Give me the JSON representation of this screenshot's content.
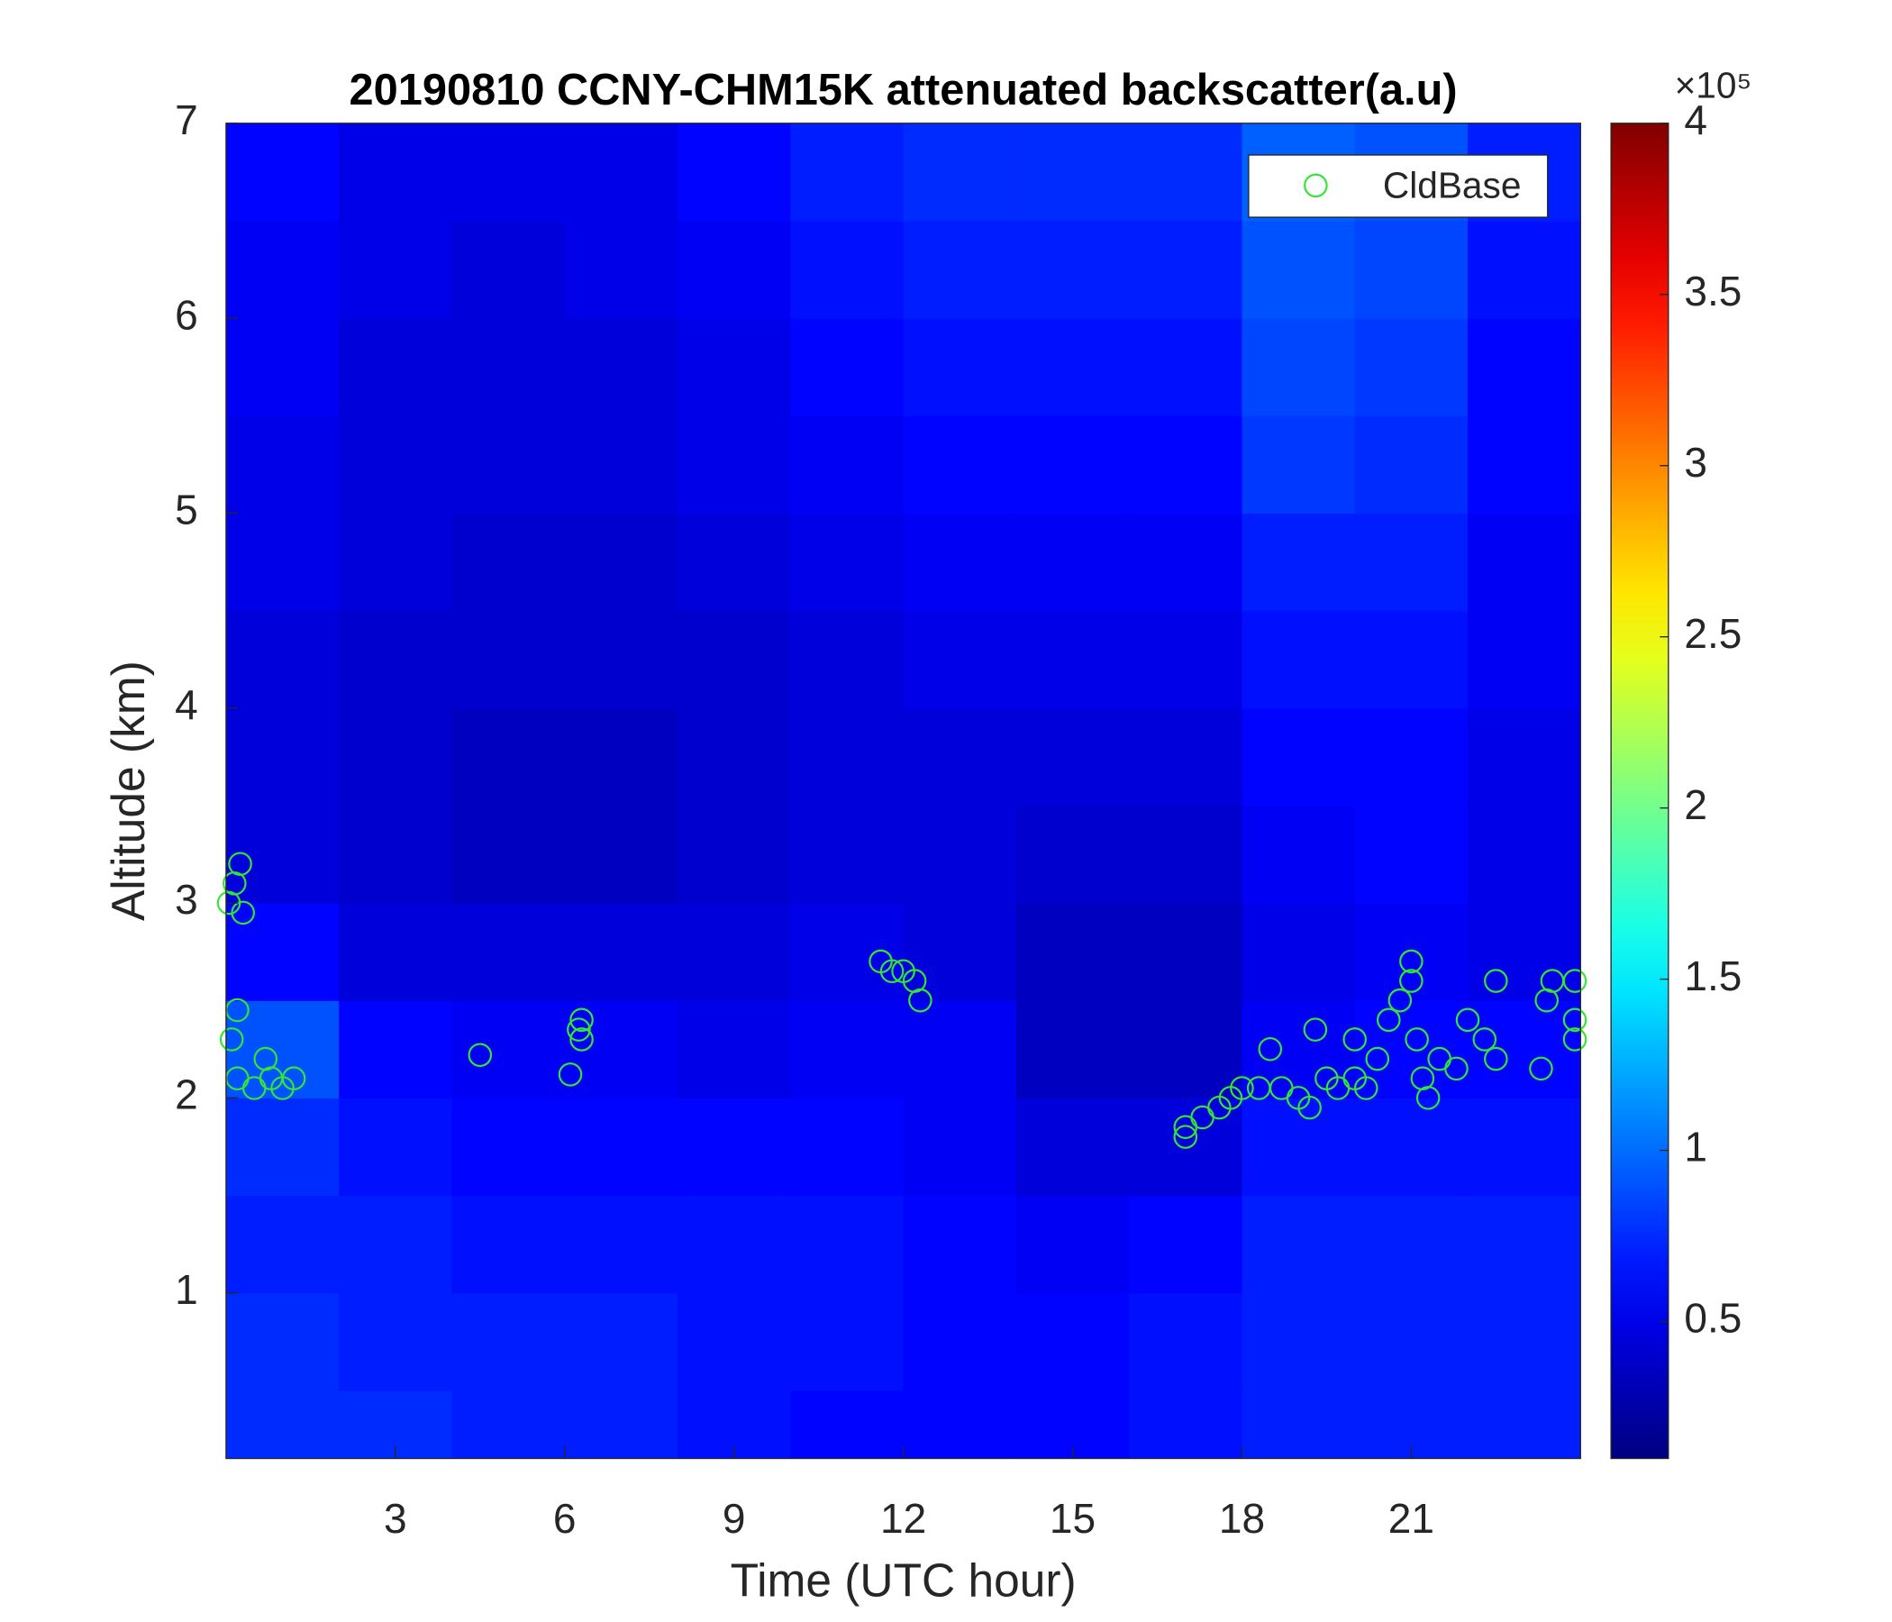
{
  "chart_data": {
    "type": "heatmap",
    "title": "20190810 CCNY-CHM15K attenuated backscatter(a.u)",
    "xlabel": "Time (UTC hour)",
    "ylabel": "Altitude (km)",
    "xlim": [
      0,
      24
    ],
    "ylim": [
      0.15,
      7
    ],
    "xticks": [
      3,
      6,
      9,
      12,
      15,
      18,
      21
    ],
    "yticks": [
      1,
      2,
      3,
      4,
      5,
      6,
      7
    ],
    "colormap": "jet",
    "zlim": [
      0.1,
      4
    ],
    "zticks": [
      0.5,
      1,
      1.5,
      2,
      2.5,
      3,
      3.5,
      4
    ],
    "colorbar_multiplier": "×10⁵",
    "heatmap": {
      "x": [
        1,
        3,
        5,
        7,
        9,
        11,
        13,
        15,
        17,
        19,
        21,
        23
      ],
      "y": [
        0.25,
        0.75,
        1.25,
        1.75,
        2.25,
        2.75,
        3.25,
        3.75,
        4.25,
        4.75,
        5.25,
        5.75,
        6.25,
        6.75
      ],
      "z": [
        [
          0.75,
          0.75,
          0.7,
          0.7,
          0.65,
          0.6,
          0.6,
          0.6,
          0.65,
          0.7,
          0.7,
          0.7
        ],
        [
          0.75,
          0.7,
          0.7,
          0.7,
          0.65,
          0.65,
          0.6,
          0.6,
          0.65,
          0.7,
          0.7,
          0.7
        ],
        [
          0.7,
          0.7,
          0.65,
          0.65,
          0.65,
          0.65,
          0.6,
          0.55,
          0.6,
          0.7,
          0.7,
          0.7
        ],
        [
          0.75,
          0.65,
          0.6,
          0.6,
          0.6,
          0.6,
          0.55,
          0.45,
          0.45,
          0.65,
          0.65,
          0.65
        ],
        [
          0.9,
          0.6,
          0.55,
          0.55,
          0.5,
          0.55,
          0.55,
          0.35,
          0.35,
          0.55,
          0.6,
          0.6
        ],
        [
          0.6,
          0.45,
          0.45,
          0.45,
          0.45,
          0.5,
          0.45,
          0.35,
          0.35,
          0.5,
          0.55,
          0.5
        ],
        [
          0.45,
          0.4,
          0.35,
          0.35,
          0.4,
          0.45,
          0.45,
          0.4,
          0.4,
          0.55,
          0.6,
          0.5
        ],
        [
          0.45,
          0.4,
          0.35,
          0.35,
          0.4,
          0.45,
          0.45,
          0.45,
          0.45,
          0.6,
          0.6,
          0.5
        ],
        [
          0.45,
          0.4,
          0.4,
          0.4,
          0.4,
          0.45,
          0.5,
          0.5,
          0.5,
          0.65,
          0.65,
          0.55
        ],
        [
          0.5,
          0.45,
          0.4,
          0.4,
          0.45,
          0.5,
          0.55,
          0.55,
          0.55,
          0.7,
          0.7,
          0.55
        ],
        [
          0.5,
          0.45,
          0.45,
          0.45,
          0.5,
          0.55,
          0.6,
          0.6,
          0.6,
          0.8,
          0.75,
          0.6
        ],
        [
          0.55,
          0.45,
          0.45,
          0.45,
          0.5,
          0.6,
          0.65,
          0.65,
          0.65,
          0.85,
          0.8,
          0.6
        ],
        [
          0.55,
          0.5,
          0.45,
          0.5,
          0.55,
          0.65,
          0.7,
          0.7,
          0.7,
          0.9,
          0.85,
          0.65
        ],
        [
          0.6,
          0.5,
          0.5,
          0.5,
          0.6,
          0.7,
          0.75,
          0.75,
          0.75,
          0.95,
          0.9,
          0.7
        ]
      ]
    },
    "legend": "northeast",
    "series": [
      {
        "name": "CldBase",
        "color": "#33e633",
        "marker": "o",
        "x": [
          0.05,
          0.15,
          0.25,
          0.3,
          0.2,
          0.1,
          0.2,
          0.5,
          0.8,
          1.0,
          1.2,
          0.7,
          4.5,
          6.1,
          6.3,
          6.3,
          6.25,
          11.6,
          11.8,
          12.0,
          12.2,
          12.3,
          17.0,
          17.0,
          17.3,
          17.6,
          17.8,
          18.0,
          18.3,
          18.5,
          18.7,
          19.0,
          19.2,
          19.3,
          19.5,
          19.7,
          20.0,
          20.0,
          20.2,
          20.4,
          20.6,
          20.8,
          21.0,
          21.0,
          21.1,
          21.2,
          21.3,
          21.5,
          21.8,
          22.0,
          22.3,
          22.5,
          22.5,
          23.3,
          23.4,
          23.5,
          23.9,
          23.9,
          23.9
        ],
        "y": [
          3.0,
          3.1,
          3.2,
          2.95,
          2.45,
          2.3,
          2.1,
          2.05,
          2.1,
          2.05,
          2.1,
          2.2,
          2.22,
          2.12,
          2.3,
          2.4,
          2.35,
          2.7,
          2.65,
          2.65,
          2.6,
          2.5,
          1.8,
          1.85,
          1.9,
          1.95,
          2.0,
          2.05,
          2.05,
          2.25,
          2.05,
          2.0,
          1.95,
          2.35,
          2.1,
          2.05,
          2.1,
          2.3,
          2.05,
          2.2,
          2.4,
          2.5,
          2.6,
          2.7,
          2.3,
          2.1,
          2.0,
          2.2,
          2.15,
          2.4,
          2.3,
          2.6,
          2.2,
          2.15,
          2.5,
          2.6,
          2.4,
          2.6,
          2.3
        ]
      }
    ]
  }
}
